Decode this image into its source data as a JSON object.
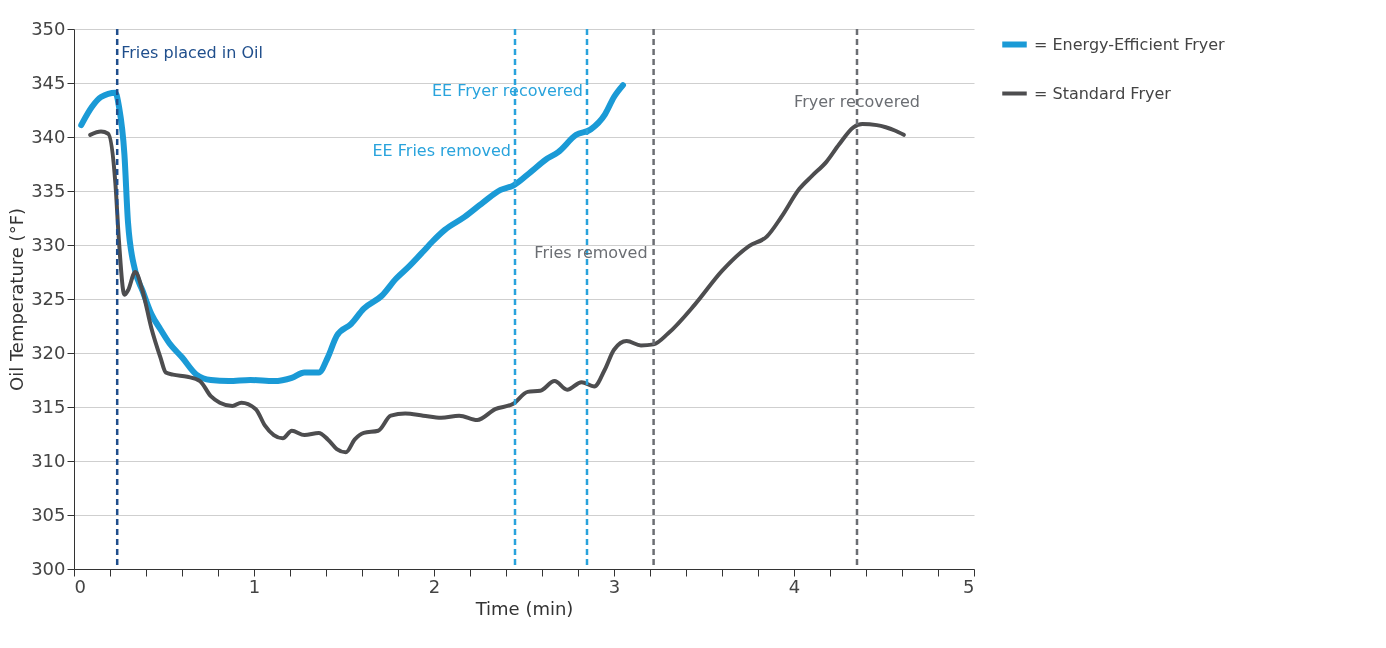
{
  "chart_data": {
    "type": "line",
    "xlabel": "Time (min)",
    "ylabel": "Oil Temperature (°F)",
    "xlim": [
      0,
      5
    ],
    "ylim": [
      300,
      350
    ],
    "xticks": [
      0,
      {
        "value": 0.2,
        "label": null
      },
      {
        "value": 0.4,
        "label": null
      },
      {
        "value": 0.6,
        "label": null
      },
      {
        "value": 0.8,
        "label": null
      },
      1,
      {
        "value": 1.2,
        "label": null
      },
      {
        "value": 1.4,
        "label": null
      },
      {
        "value": 1.6,
        "label": null
      },
      {
        "value": 1.8,
        "label": null
      },
      2,
      {
        "value": 2.2,
        "label": null
      },
      {
        "value": 2.4,
        "label": null
      },
      {
        "value": 2.6,
        "label": null
      },
      {
        "value": 2.8,
        "label": null
      },
      3,
      {
        "value": 3.2,
        "label": null
      },
      {
        "value": 3.4,
        "label": null
      },
      {
        "value": 3.6,
        "label": null
      },
      {
        "value": 3.8,
        "label": null
      },
      4,
      {
        "value": 4.2,
        "label": null
      },
      {
        "value": 4.4,
        "label": null
      },
      {
        "value": 4.6,
        "label": null
      },
      {
        "value": 4.8,
        "label": null
      },
      5
    ],
    "yticks": [
      300,
      305,
      310,
      315,
      320,
      325,
      330,
      335,
      340,
      345,
      350
    ],
    "grid": "y",
    "legend": "right",
    "line_style": "solid",
    "series": [
      {
        "name": "= Energy-Efficient Fryer",
        "color": "#1a9ad6",
        "x": [
          0.04,
          0.1,
          0.15,
          0.23,
          0.25,
          0.28,
          0.3,
          0.34,
          0.38,
          0.43,
          0.48,
          0.53,
          0.6,
          0.68,
          0.76,
          0.86,
          0.98,
          1.11,
          1.21,
          1.28,
          1.36,
          1.41,
          1.46,
          1.54,
          1.61,
          1.71,
          1.79,
          1.86,
          1.94,
          1.99,
          2.06,
          2.17,
          2.27,
          2.37,
          2.44,
          2.54,
          2.62,
          2.69,
          2.79,
          2.87,
          2.95,
          3.0,
          3.05
        ],
        "values": [
          341.1,
          342.8,
          343.7,
          344.1,
          342.8,
          338.4,
          332.1,
          327.6,
          325.8,
          323.6,
          322.2,
          320.9,
          319.6,
          318.0,
          317.5,
          317.4,
          317.5,
          317.4,
          317.7,
          318.2,
          318.2,
          319.6,
          321.6,
          322.7,
          324.1,
          325.3,
          326.9,
          328.0,
          329.4,
          330.3,
          331.4,
          332.6,
          333.9,
          335.1,
          335.5,
          336.8,
          337.9,
          338.6,
          340.2,
          340.7,
          342.1,
          343.7,
          344.8
        ]
      },
      {
        "name": "= Standard Fryer",
        "color": "#4d4d4f",
        "x": [
          0.09,
          0.15,
          0.19,
          0.23,
          0.25,
          0.28,
          0.3,
          0.34,
          0.38,
          0.43,
          0.48,
          0.51,
          0.55,
          0.63,
          0.7,
          0.76,
          0.81,
          0.88,
          0.93,
          1.01,
          1.06,
          1.11,
          1.16,
          1.21,
          1.28,
          1.36,
          1.41,
          1.46,
          1.51,
          1.56,
          1.61,
          1.69,
          1.76,
          1.84,
          1.94,
          2.04,
          2.14,
          2.24,
          2.34,
          2.44,
          2.52,
          2.59,
          2.67,
          2.74,
          2.82,
          2.89,
          2.95,
          3.0,
          3.07,
          3.15,
          3.22,
          3.3,
          3.45,
          3.6,
          3.75,
          3.85,
          3.93,
          4.03,
          4.1,
          4.18,
          4.25,
          4.33,
          4.38,
          4.46,
          4.51,
          4.56,
          4.61
        ],
        "values": [
          340.2,
          340.5,
          340.3,
          335.7,
          330.3,
          325.4,
          325.8,
          327.5,
          325.8,
          322.3,
          319.6,
          318.2,
          318.0,
          317.8,
          317.4,
          316.0,
          315.4,
          315.1,
          315.4,
          314.8,
          313.3,
          312.4,
          312.1,
          312.8,
          312.4,
          312.6,
          312.0,
          311.1,
          310.8,
          312.0,
          312.6,
          312.8,
          314.2,
          314.4,
          314.2,
          314.0,
          314.2,
          313.8,
          314.8,
          315.3,
          316.4,
          316.5,
          317.4,
          316.6,
          317.3,
          316.9,
          318.5,
          320.3,
          321.1,
          320.7,
          320.8,
          321.8,
          324.5,
          327.6,
          329.9,
          330.8,
          332.6,
          335.2,
          336.4,
          337.7,
          339.3,
          340.9,
          341.2,
          341.1,
          340.9,
          340.6,
          340.2
        ]
      }
    ],
    "ref_lines": [
      {
        "axis": "x",
        "value": 0.24,
        "label": "Fries placed in Oil",
        "color": "#1f4e8c",
        "line_style": "dashed"
      },
      {
        "axis": "x",
        "value": 2.45,
        "label": "EE Fries removed",
        "color": "#29a3dc",
        "line_style": "dashed"
      },
      {
        "axis": "x",
        "value": 2.85,
        "label": "EE Fryer recovered",
        "color": "#29a3dc",
        "line_style": "dashed"
      },
      {
        "axis": "x",
        "value": 3.22,
        "label": "Fries removed",
        "color": "#6b6e73",
        "line_style": "dashed"
      },
      {
        "axis": "x",
        "value": 4.35,
        "label": "Fryer recovered",
        "color": "#6b6e73",
        "line_style": "dashed"
      }
    ]
  }
}
